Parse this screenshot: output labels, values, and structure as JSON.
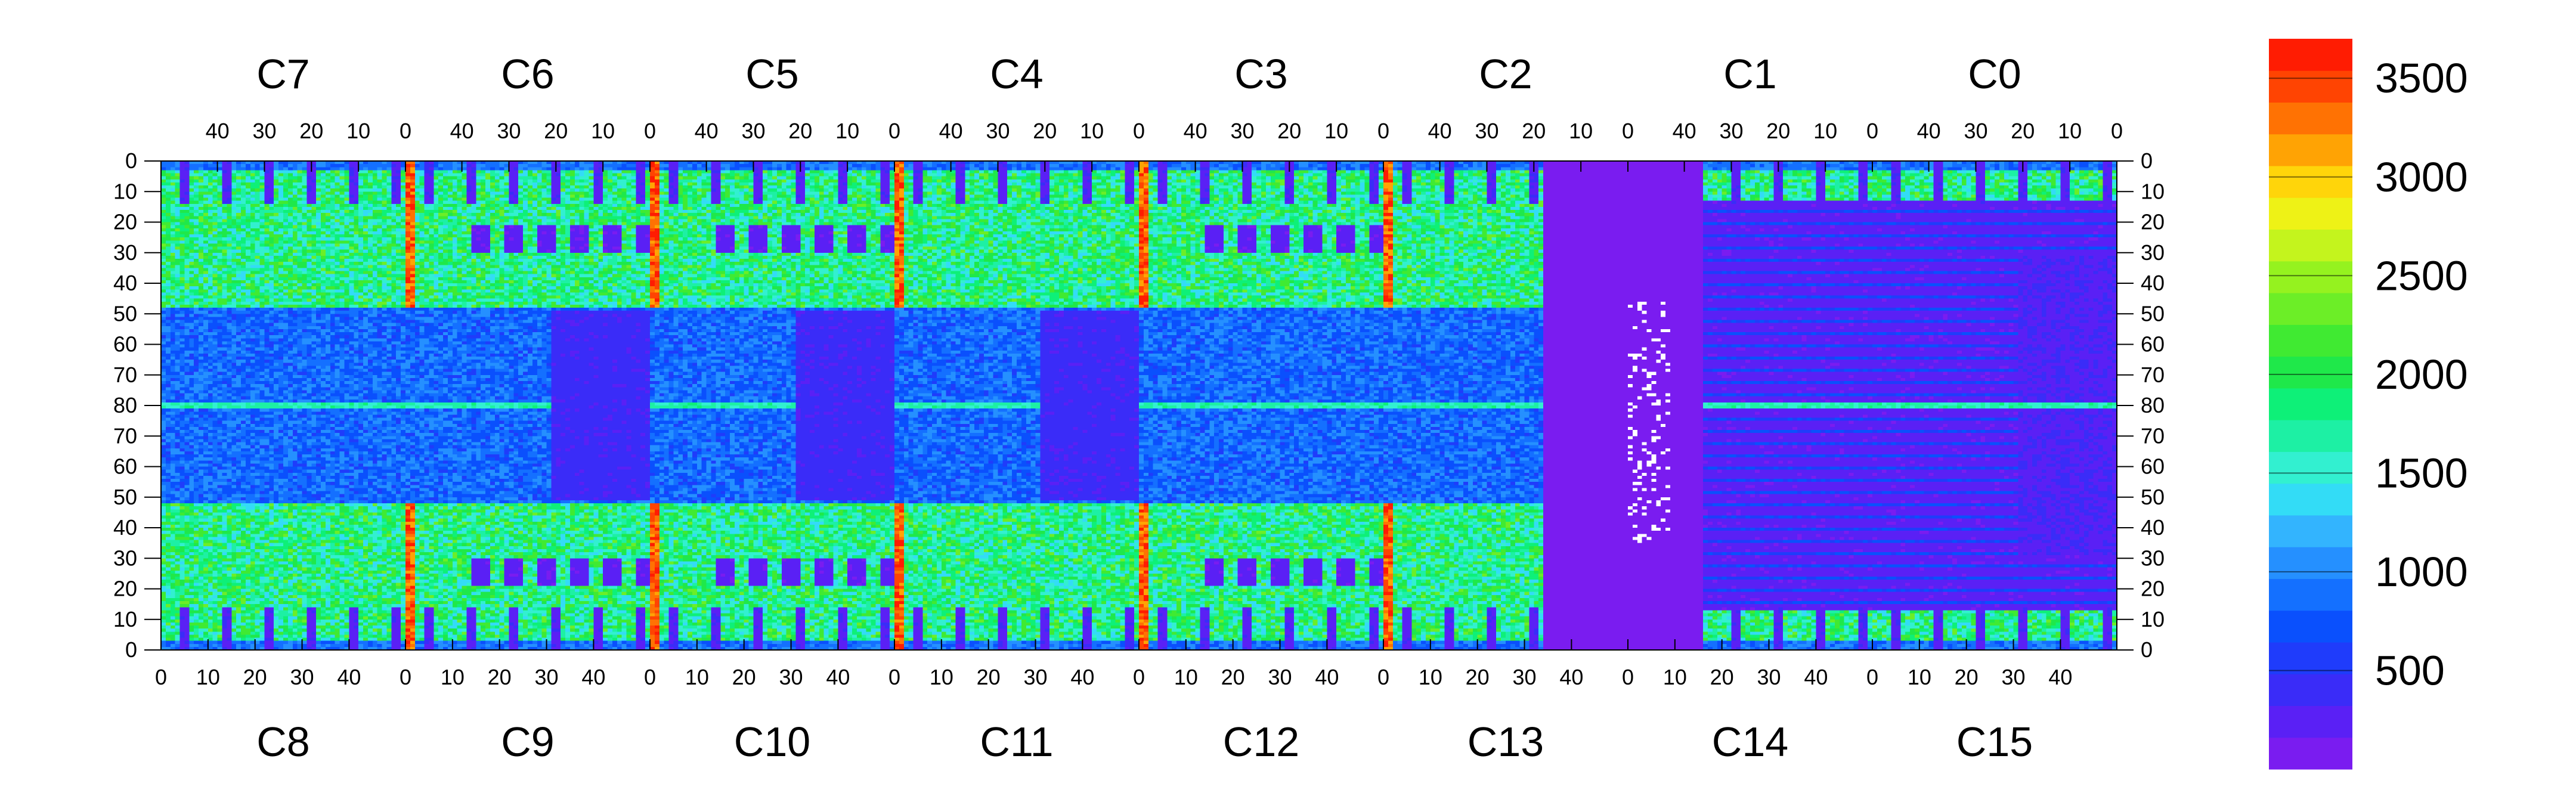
{
  "chart_data": {
    "type": "heatmap",
    "title": "",
    "xlabel": "",
    "ylabel": "",
    "top_chips": [
      "C7",
      "C6",
      "C5",
      "C4",
      "C3",
      "C2",
      "C1",
      "C0"
    ],
    "bottom_chips": [
      "C8",
      "C9",
      "C10",
      "C11",
      "C12",
      "C13",
      "C14",
      "C15"
    ],
    "top_ticks": [
      "40",
      "30",
      "20",
      "10",
      "0"
    ],
    "bottom_ticks": [
      "0",
      "10",
      "20",
      "30",
      "40"
    ],
    "y_ticks_top_half": [
      "0",
      "10",
      "20",
      "30",
      "40",
      "50",
      "60",
      "70"
    ],
    "y_ticks_bottom_half": [
      "80",
      "70",
      "60",
      "50",
      "40",
      "30",
      "20",
      "10",
      "0"
    ],
    "chip_columns": 52,
    "rows_per_half": 80,
    "z_range": [
      0,
      3700
    ],
    "colorbar_ticks": [
      "500",
      "1000",
      "1500",
      "2000",
      "2500",
      "3000",
      "3500"
    ],
    "colorbar_values": [
      500,
      1000,
      1500,
      2000,
      2500,
      3000,
      3500
    ],
    "palette": [
      "#7a1cf0",
      "#5a20f5",
      "#3a2cf8",
      "#1f3cfb",
      "#0a50fd",
      "#1470ff",
      "#2590ff",
      "#33b4fe",
      "#33dcf6",
      "#32f0d0",
      "#1df0a4",
      "#0ef078",
      "#1fe84a",
      "#40ea32",
      "#6cee27",
      "#95f21f",
      "#c4f41d",
      "#eef216",
      "#ffd50a",
      "#ffa304",
      "#ff7203",
      "#ff4402",
      "#ff1c02"
    ],
    "background_pixel_color": "#7800ff"
  }
}
